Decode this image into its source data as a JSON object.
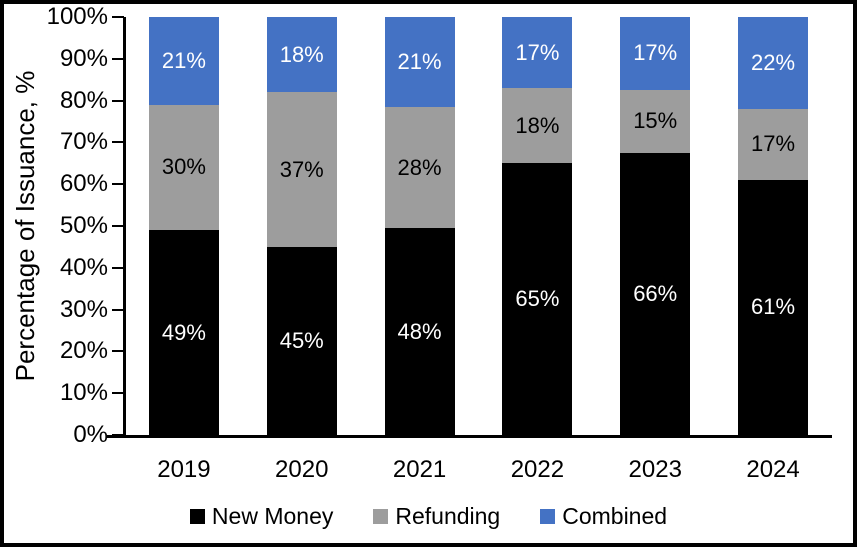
{
  "window": {
    "background": "#FFFFFF",
    "border_color": "#000000"
  },
  "chart_data": {
    "type": "bar",
    "variant": "stacked-percentage",
    "title": "",
    "xlabel": "",
    "ylabel": "Percentage of Issuance, %",
    "categories": [
      "2019",
      "2020",
      "2021",
      "2022",
      "2023",
      "2024"
    ],
    "series": [
      {
        "name": "New Money",
        "color": "#000000",
        "label_color": "#FFFFFF",
        "values": [
          49,
          45,
          48,
          65,
          66,
          61
        ]
      },
      {
        "name": "Refunding",
        "color": "#9D9D9D",
        "label_color": "#000000",
        "values": [
          30,
          37,
          28,
          18,
          15,
          17
        ]
      },
      {
        "name": "Combined",
        "color": "#4472C4",
        "label_color": "#FFFFFF",
        "values": [
          21,
          18,
          21,
          17,
          17,
          22
        ]
      }
    ],
    "value_suffix": "%",
    "ylim": [
      0,
      100
    ],
    "yticks": [
      "0%",
      "10%",
      "20%",
      "30%",
      "40%",
      "50%",
      "60%",
      "70%",
      "80%",
      "90%",
      "100%"
    ],
    "grid": false,
    "legend_position": "bottom",
    "axis_color": "#000000"
  }
}
